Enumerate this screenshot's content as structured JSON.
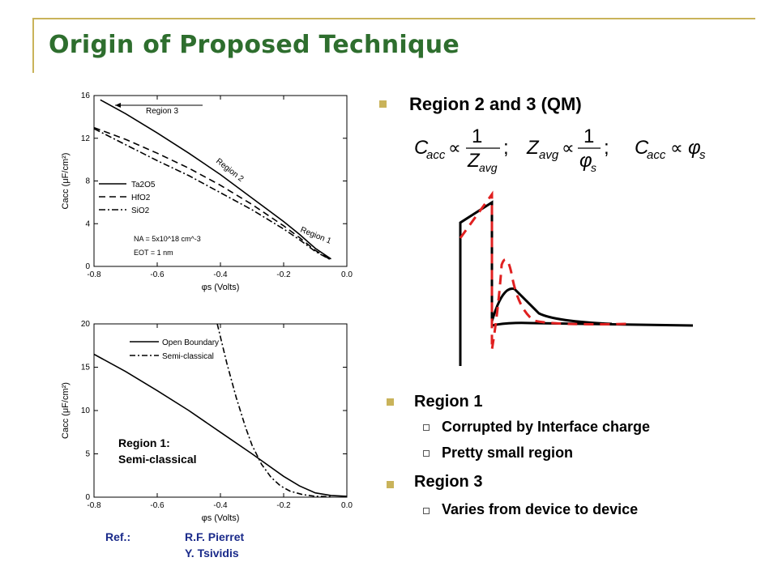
{
  "slide": {
    "title": "Origin of Proposed Technique",
    "bullet_qm": "Region 2 and 3 (QM)",
    "equations": {
      "eq1_lhs": "C",
      "eq1_lhs_sub": "acc",
      "eq1_num": "1",
      "eq1_den": "Z",
      "eq1_den_sub": "avg",
      "eq2_lhs": "Z",
      "eq2_lhs_sub": "avg",
      "eq2_num": "1",
      "eq2_den": "φ",
      "eq2_den_sub": "s",
      "eq3_lhs": "C",
      "eq3_lhs_sub": "acc",
      "eq3_rhs": "φ",
      "eq3_rhs_sub": "s",
      "prop": "∝",
      "semicolon": ";"
    },
    "region1": {
      "heading": "Region 1",
      "items": [
        "Corrupted by Interface charge",
        "Pretty small region"
      ]
    },
    "region3": {
      "heading": "Region 3",
      "items": [
        "Varies from device to device"
      ]
    },
    "ref": {
      "label": "Ref.:",
      "authors": [
        "R.F. Pierret",
        "Y. Tsividis"
      ]
    },
    "colors": {
      "title": "#2e6e2e",
      "accent": "#c9b35a",
      "dashed_curve": "#e02020",
      "ref": "#1a2a8a"
    }
  },
  "chart_data": [
    {
      "type": "line",
      "xlabel": "φs (Volts)",
      "ylabel": "Cacc (μF/cm²)",
      "xlim": [
        -0.8,
        0.0
      ],
      "ylim": [
        0,
        16
      ],
      "xticks": [
        "-0.8",
        "-0.6",
        "-0.4",
        "-0.2",
        "0.0"
      ],
      "yticks": [
        "0",
        "4",
        "8",
        "12",
        "16"
      ],
      "legend": [
        "Ta2O5",
        "HfO2",
        "SiO2"
      ],
      "annotations": [
        "Region 3",
        "Region 2",
        "Region 1",
        "NA = 5x10^18 cm^-3",
        "EOT = 1 nm"
      ],
      "series": [
        {
          "name": "Ta2O5",
          "x": [
            -0.78,
            -0.7,
            -0.6,
            -0.5,
            -0.4,
            -0.3,
            -0.2,
            -0.15,
            -0.1,
            -0.05
          ],
          "y": [
            15.6,
            14.3,
            12.5,
            10.6,
            8.6,
            6.4,
            4.2,
            3.0,
            1.7,
            0.7
          ]
        },
        {
          "name": "HfO2",
          "x": [
            -0.8,
            -0.7,
            -0.6,
            -0.5,
            -0.4,
            -0.3,
            -0.2,
            -0.15,
            -0.1,
            -0.05
          ],
          "y": [
            13.0,
            11.9,
            10.6,
            9.2,
            7.6,
            5.8,
            3.8,
            2.7,
            1.5,
            0.6
          ]
        },
        {
          "name": "SiO2",
          "x": [
            -0.8,
            -0.7,
            -0.6,
            -0.5,
            -0.4,
            -0.3,
            -0.2,
            -0.15,
            -0.1,
            -0.05
          ],
          "y": [
            12.9,
            11.4,
            9.9,
            8.5,
            6.9,
            5.3,
            3.5,
            2.5,
            1.4,
            0.6
          ]
        }
      ]
    },
    {
      "type": "line",
      "xlabel": "φs (Volts)",
      "ylabel": "Cacc (μF/cm²)",
      "xlim": [
        -0.8,
        0.0
      ],
      "ylim": [
        0,
        20
      ],
      "xticks": [
        "-0.8",
        "-0.6",
        "-0.4",
        "-0.2",
        "0.0"
      ],
      "yticks": [
        "0",
        "5",
        "10",
        "15",
        "20"
      ],
      "legend": [
        "Open Boundary",
        "Semi-classical"
      ],
      "annotations": [
        "Region 1:",
        "Semi-classical"
      ],
      "series": [
        {
          "name": "Open Boundary",
          "x": [
            -0.8,
            -0.7,
            -0.6,
            -0.5,
            -0.4,
            -0.3,
            -0.2,
            -0.15,
            -0.1,
            -0.05,
            0.0
          ],
          "y": [
            16.5,
            14.5,
            12.3,
            10.0,
            7.5,
            5.0,
            2.4,
            1.3,
            0.5,
            0.2,
            0.1
          ]
        },
        {
          "name": "Semi-classical",
          "x": [
            -0.41,
            -0.38,
            -0.35,
            -0.32,
            -0.3,
            -0.27,
            -0.24,
            -0.21,
            -0.18,
            -0.14,
            -0.1,
            -0.05
          ],
          "y": [
            20,
            15.5,
            11.5,
            8.0,
            6.0,
            3.8,
            2.3,
            1.3,
            0.7,
            0.3,
            0.1,
            0.05
          ]
        }
      ]
    }
  ]
}
